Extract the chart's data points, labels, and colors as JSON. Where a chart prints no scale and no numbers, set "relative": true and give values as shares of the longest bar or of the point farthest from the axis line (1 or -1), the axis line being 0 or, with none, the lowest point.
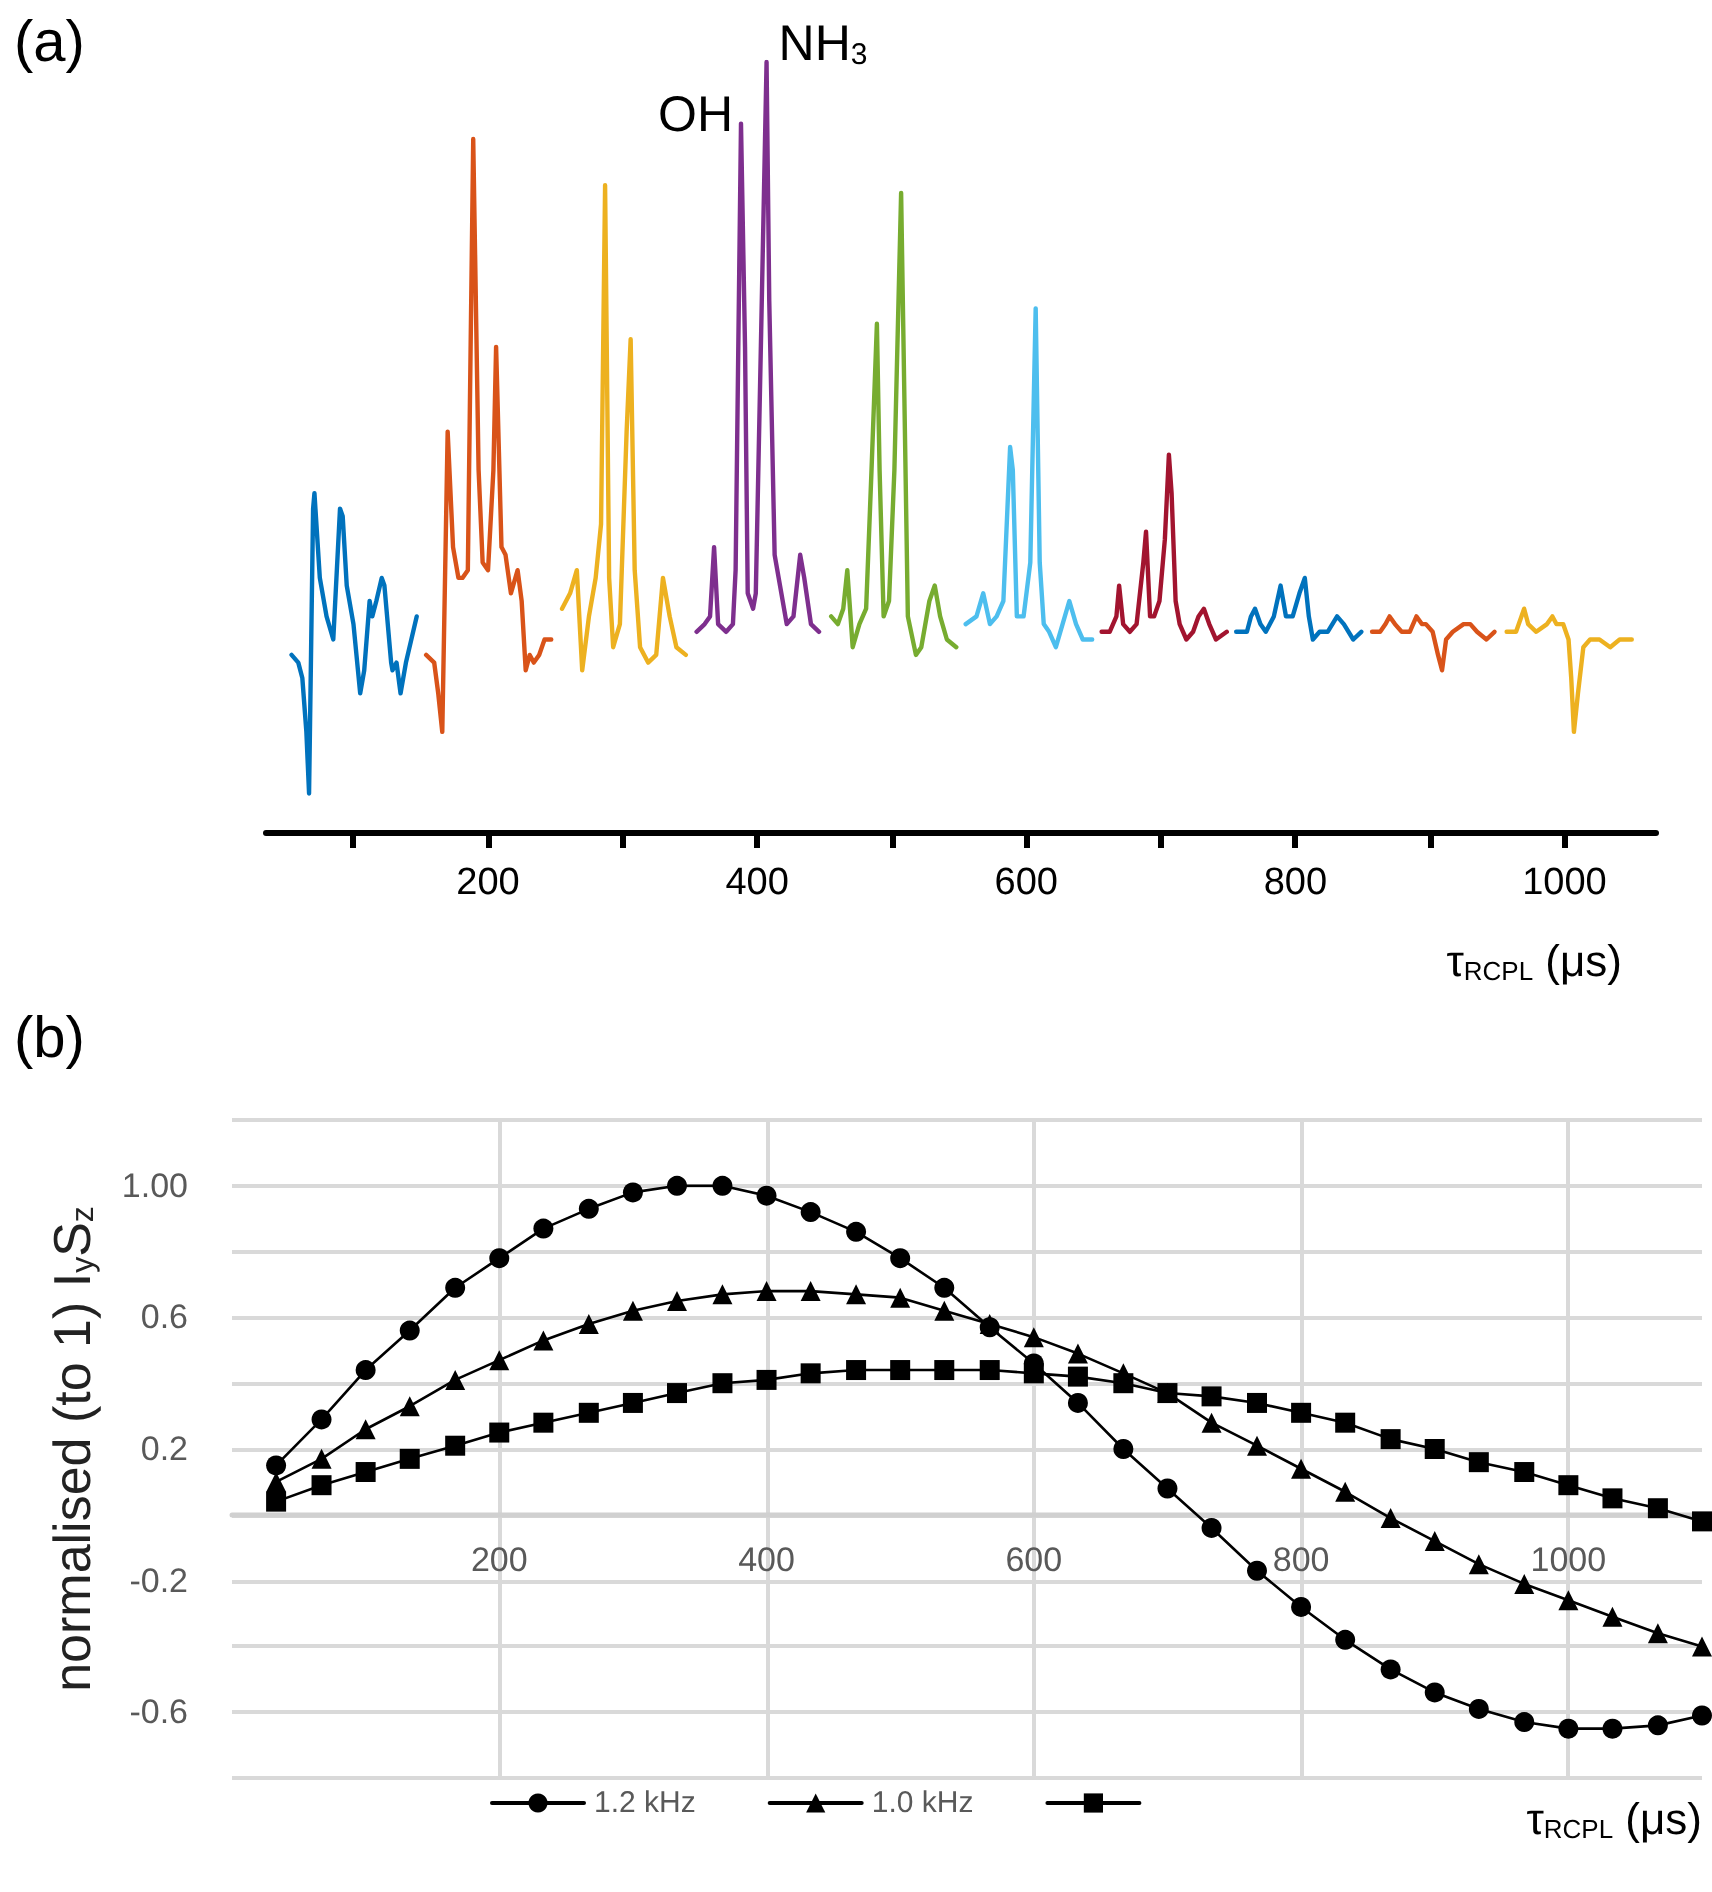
{
  "chart_data": [
    {
      "type": "line",
      "title": "(a)",
      "xlabel": "τ$_{RCPL}$ (μs)",
      "relative": true,
      "line_style": "solid",
      "xlim": [
        35,
        1068
      ],
      "xticks": [
        {
          "value": 100,
          "label": null
        },
        200,
        {
          "value": 300,
          "label": null
        },
        400,
        {
          "value": 500,
          "label": null
        },
        600,
        {
          "value": 700,
          "label": null
        },
        800,
        {
          "value": 900,
          "label": null
        },
        1000
      ],
      "annotations": [
        {
          "text": "OH",
          "x": 388,
          "y": 0.92
        },
        {
          "text": "NH$_{3}$",
          "x": 407,
          "y": 1.0
        }
      ],
      "series": [
        {
          "color": "#0072bd",
          "x": [
            54,
            59,
            62,
            65,
            67,
            70,
            71,
            75,
            80,
            85,
            86,
            90,
            92,
            95,
            100,
            105,
            108,
            112,
            114,
            117,
            121,
            123,
            128,
            129,
            132,
            135,
            139,
            147
          ],
          "values": [
            0.23,
            0.22,
            0.2,
            0.13,
            0.05,
            0.42,
            0.44,
            0.33,
            0.28,
            0.25,
            0.25,
            0.42,
            0.41,
            0.32,
            0.27,
            0.18,
            0.21,
            0.3,
            0.28,
            0.3,
            0.33,
            0.32,
            0.22,
            0.21,
            0.22,
            0.18,
            0.22,
            0.28
          ]
        },
        {
          "color": "#d95319",
          "x": [
            154,
            160,
            163,
            166,
            170,
            174,
            178,
            181,
            185,
            189,
            193,
            196,
            200,
            204,
            206,
            210,
            213,
            217,
            222,
            225,
            228,
            231,
            234,
            238,
            242,
            247
          ],
          "values": [
            0.23,
            0.22,
            0.18,
            0.13,
            0.52,
            0.37,
            0.33,
            0.33,
            0.34,
            0.9,
            0.47,
            0.35,
            0.34,
            0.47,
            0.63,
            0.37,
            0.36,
            0.31,
            0.34,
            0.3,
            0.21,
            0.23,
            0.22,
            0.23,
            0.25,
            0.25
          ]
        },
        {
          "color": "#edb120",
          "x": [
            255,
            261,
            266,
            270,
            275,
            280,
            284,
            287,
            290,
            293,
            298,
            303,
            306,
            309,
            313,
            319,
            325,
            330,
            335,
            340,
            347
          ],
          "values": [
            0.29,
            0.31,
            0.34,
            0.21,
            0.28,
            0.33,
            0.4,
            0.84,
            0.33,
            0.24,
            0.27,
            0.52,
            0.64,
            0.34,
            0.24,
            0.22,
            0.23,
            0.33,
            0.28,
            0.24,
            0.23
          ]
        },
        {
          "color": "#7e2f8e",
          "x": [
            355,
            361,
            365,
            368,
            371,
            377,
            382,
            384,
            388,
            391,
            393,
            397,
            399,
            403,
            407,
            409,
            413,
            417,
            422,
            427,
            432,
            435,
            440,
            446
          ],
          "values": [
            0.26,
            0.27,
            0.28,
            0.37,
            0.27,
            0.26,
            0.27,
            0.34,
            0.92,
            0.63,
            0.31,
            0.29,
            0.31,
            0.65,
            1.0,
            0.69,
            0.36,
            0.32,
            0.27,
            0.28,
            0.36,
            0.33,
            0.27,
            0.26
          ]
        },
        {
          "color": "#77ac30",
          "x": [
            455,
            460,
            464,
            467,
            471,
            476,
            481,
            485,
            489,
            491,
            494,
            498,
            502,
            507,
            512,
            518,
            522,
            528,
            532,
            536,
            541,
            548
          ],
          "values": [
            0.28,
            0.27,
            0.29,
            0.34,
            0.24,
            0.27,
            0.29,
            0.47,
            0.66,
            0.47,
            0.28,
            0.3,
            0.47,
            0.83,
            0.28,
            0.23,
            0.24,
            0.3,
            0.32,
            0.28,
            0.25,
            0.24
          ]
        },
        {
          "color": "#4dbeee",
          "x": [
            555,
            563,
            568,
            573,
            578,
            583,
            588,
            590,
            593,
            598,
            603,
            607,
            610,
            613,
            617,
            622,
            627,
            632,
            637,
            642,
            649
          ],
          "values": [
            0.27,
            0.28,
            0.31,
            0.27,
            0.28,
            0.3,
            0.5,
            0.47,
            0.28,
            0.28,
            0.35,
            0.68,
            0.35,
            0.27,
            0.26,
            0.24,
            0.27,
            0.3,
            0.27,
            0.25,
            0.25
          ]
        },
        {
          "color": "#a2142f",
          "x": [
            656,
            662,
            667,
            669,
            672,
            677,
            682,
            687,
            689,
            692,
            695,
            699,
            703,
            706,
            708,
            711,
            714,
            719,
            724,
            728,
            732,
            736,
            741,
            749
          ],
          "values": [
            0.26,
            0.26,
            0.28,
            0.32,
            0.27,
            0.26,
            0.27,
            0.35,
            0.39,
            0.28,
            0.28,
            0.3,
            0.38,
            0.49,
            0.44,
            0.3,
            0.27,
            0.25,
            0.26,
            0.28,
            0.29,
            0.27,
            0.25,
            0.26
          ]
        },
        {
          "color": "#0072bd",
          "x": [
            756,
            764,
            767,
            770,
            774,
            778,
            784,
            789,
            793,
            798,
            803,
            807,
            810,
            813,
            818,
            824,
            831,
            836,
            843,
            849
          ],
          "values": [
            0.26,
            0.26,
            0.28,
            0.29,
            0.27,
            0.26,
            0.28,
            0.32,
            0.28,
            0.28,
            0.31,
            0.33,
            0.28,
            0.25,
            0.26,
            0.26,
            0.28,
            0.27,
            0.25,
            0.26
          ]
        },
        {
          "color": "#d95319",
          "x": [
            857,
            863,
            867,
            870,
            874,
            879,
            885,
            890,
            894,
            897,
            902,
            906,
            909,
            912,
            917,
            925,
            930,
            935,
            942,
            948
          ],
          "values": [
            0.26,
            0.26,
            0.27,
            0.28,
            0.27,
            0.26,
            0.26,
            0.28,
            0.27,
            0.27,
            0.26,
            0.23,
            0.21,
            0.25,
            0.26,
            0.27,
            0.27,
            0.26,
            0.25,
            0.26
          ]
        },
        {
          "color": "#edb120",
          "x": [
            957,
            964,
            968,
            970,
            973,
            979,
            987,
            991,
            994,
            999,
            1003,
            1005,
            1007,
            1010,
            1014,
            1019,
            1026,
            1034,
            1041,
            1050
          ],
          "values": [
            0.26,
            0.26,
            0.28,
            0.29,
            0.27,
            0.26,
            0.27,
            0.28,
            0.27,
            0.27,
            0.25,
            0.2,
            0.13,
            0.18,
            0.24,
            0.25,
            0.25,
            0.24,
            0.25,
            0.25
          ]
        }
      ]
    },
    {
      "type": "line",
      "title": "(b)",
      "xlabel": "τ$_{RCPL}$ (μs)",
      "ylabel": "normalised (to 1) I$_{y}$S$_{z}$",
      "grid": true,
      "legend": "bottom",
      "line_style": "solid",
      "xlim": [
        0,
        1100
      ],
      "xticks": [
        200,
        400,
        600,
        800,
        1000
      ],
      "ylim": [
        -0.8,
        1.2
      ],
      "yticks": [
        {
          "value": -0.8,
          "label": null
        },
        -0.6,
        {
          "value": -0.4,
          "label": null
        },
        -0.2,
        {
          "value": 0,
          "label": null
        },
        0.2,
        {
          "value": 0.4,
          "label": null
        },
        0.6,
        {
          "value": 0.8,
          "label": null
        },
        {
          "value": 1,
          "label": "1.00"
        },
        {
          "value": 1.2,
          "label": null
        }
      ],
      "x": [
        33,
        67,
        100,
        133,
        167,
        200,
        233,
        267,
        300,
        333,
        367,
        400,
        433,
        467,
        500,
        533,
        567,
        600,
        633,
        667,
        700,
        733,
        767,
        800,
        833,
        867,
        900,
        933,
        967,
        1000,
        1033,
        1067,
        1100
      ],
      "series": [
        {
          "name": "1.2 kHz",
          "color": "#000000",
          "marker": "circle",
          "values": [
            0.15,
            0.29,
            0.44,
            0.56,
            0.69,
            0.78,
            0.87,
            0.93,
            0.98,
            1.0,
            1.0,
            0.97,
            0.92,
            0.86,
            0.78,
            0.69,
            0.57,
            0.46,
            0.34,
            0.2,
            0.08,
            -0.04,
            -0.17,
            -0.28,
            -0.38,
            -0.47,
            -0.54,
            -0.59,
            -0.63,
            -0.65,
            -0.65,
            -0.64,
            -0.61
          ]
        },
        {
          "name": "1.0 kHz",
          "color": "#000000",
          "marker": "triangle",
          "values": [
            0.1,
            0.17,
            0.26,
            0.33,
            0.41,
            0.47,
            0.53,
            0.58,
            0.62,
            0.65,
            0.67,
            0.68,
            0.68,
            0.67,
            0.66,
            0.62,
            0.58,
            0.54,
            0.49,
            0.43,
            0.37,
            0.28,
            0.21,
            0.14,
            0.07,
            -0.01,
            -0.08,
            -0.15,
            -0.21,
            -0.26,
            -0.31,
            -0.36,
            -0.4
          ]
        },
        {
          "color": "#000000",
          "marker": "square",
          "values": [
            0.04,
            0.09,
            0.13,
            0.17,
            0.21,
            0.25,
            0.28,
            0.31,
            0.34,
            0.37,
            0.4,
            0.41,
            0.43,
            0.44,
            0.44,
            0.44,
            0.44,
            0.43,
            0.42,
            0.4,
            0.37,
            0.36,
            0.34,
            0.31,
            0.28,
            0.23,
            0.2,
            0.16,
            0.13,
            0.09,
            0.05,
            0.02,
            -0.02
          ]
        }
      ]
    }
  ]
}
